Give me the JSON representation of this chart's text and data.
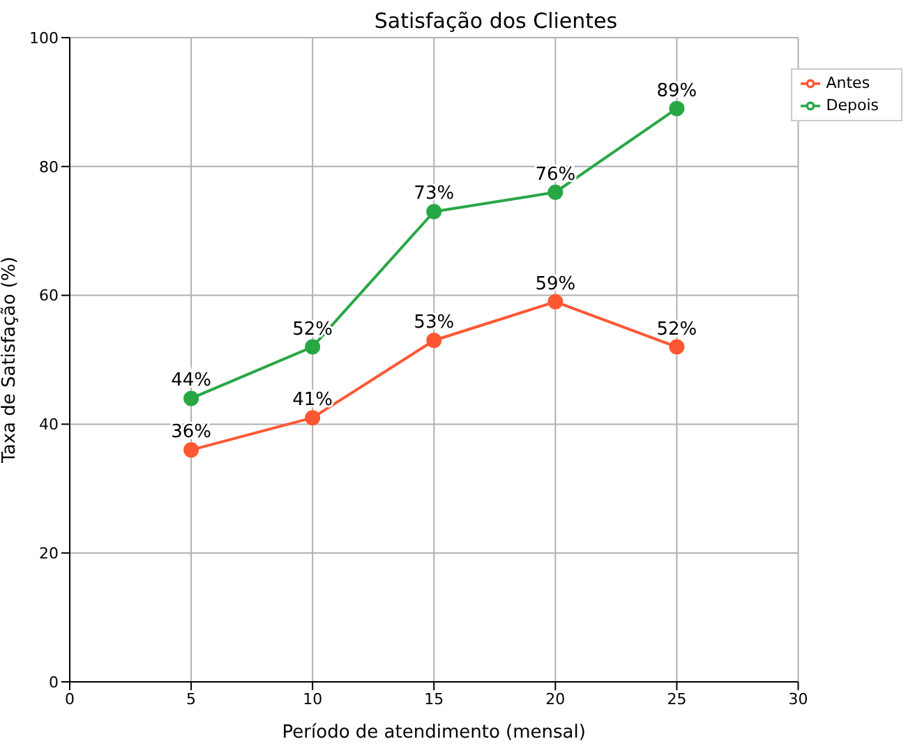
{
  "chart_data": {
    "type": "line",
    "title": "Satisfação dos Clientes",
    "xlabel": "Período de atendimento (mensal)",
    "ylabel": "Taxa de Satisfação (%)",
    "x": [
      5,
      10,
      15,
      20,
      25
    ],
    "series": [
      {
        "name": "Antes",
        "color": "#ff5733",
        "values": [
          36,
          41,
          53,
          59,
          52
        ],
        "value_labels": [
          "36%",
          "41%",
          "53%",
          "59%",
          "52%"
        ]
      },
      {
        "name": "Depois",
        "color": "#28a745",
        "values": [
          44,
          52,
          73,
          76,
          89
        ],
        "value_labels": [
          "44%",
          "52%",
          "73%",
          "76%",
          "89%"
        ]
      }
    ],
    "xlim": [
      0,
      30
    ],
    "xticks": [
      0,
      5,
      10,
      15,
      20,
      25,
      30
    ],
    "ylim": [
      0,
      100
    ],
    "yticks": [
      0,
      20,
      40,
      60,
      80,
      100
    ],
    "grid": true,
    "legend": "top right",
    "marker": "circle",
    "line_style": "solid"
  }
}
